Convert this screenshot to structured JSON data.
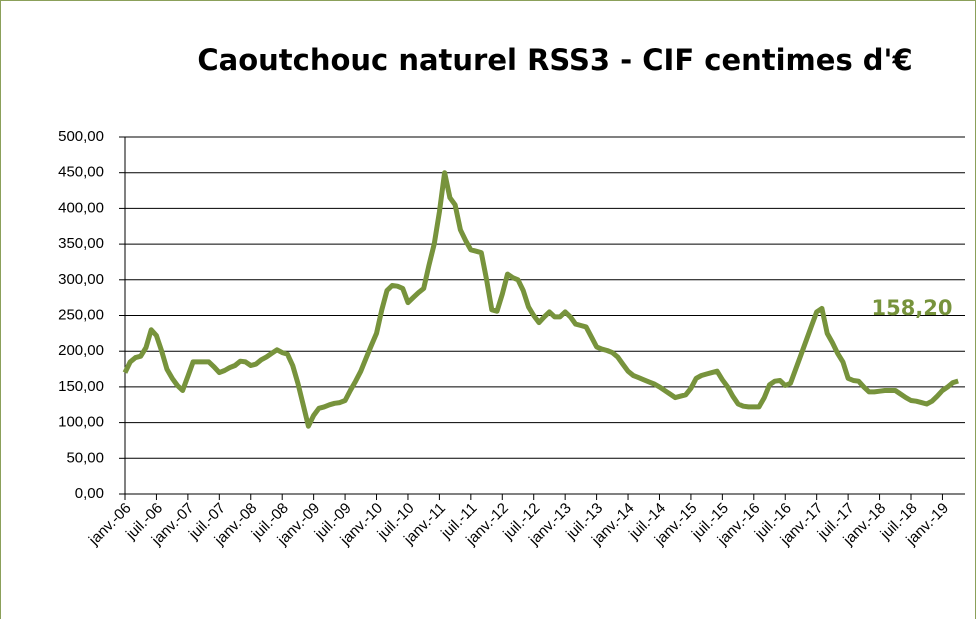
{
  "chart_data": {
    "type": "line",
    "title": "Caoutchouc naturel RSS3 - CIF centimes d'€",
    "annotation": "158,20",
    "color": "#77933c",
    "grid": true,
    "ylim": [
      0,
      500
    ],
    "yticks": [
      {
        "value": 0,
        "label": "0,00"
      },
      {
        "value": 50,
        "label": "50,00"
      },
      {
        "value": 100,
        "label": "100,00"
      },
      {
        "value": 150,
        "label": "150,00"
      },
      {
        "value": 200,
        "label": "200,00"
      },
      {
        "value": 250,
        "label": "250,00"
      },
      {
        "value": 300,
        "label": "300,00"
      },
      {
        "value": 350,
        "label": "350,00"
      },
      {
        "value": 400,
        "label": "400,00"
      },
      {
        "value": 450,
        "label": "450,00"
      },
      {
        "value": 500,
        "label": "500,00"
      }
    ],
    "categories": [
      "janv.-06",
      null,
      null,
      null,
      null,
      null,
      "juil.-06",
      null,
      null,
      null,
      null,
      null,
      "janv.-07",
      null,
      null,
      null,
      null,
      null,
      "juil.-07",
      null,
      null,
      null,
      null,
      null,
      "janv.-08",
      null,
      null,
      null,
      null,
      null,
      "juil.-08",
      null,
      null,
      null,
      null,
      null,
      "janv.-09",
      null,
      null,
      null,
      null,
      null,
      "juil.-09",
      null,
      null,
      null,
      null,
      null,
      "janv.-10",
      null,
      null,
      null,
      null,
      null,
      "juil.-10",
      null,
      null,
      null,
      null,
      null,
      "janv.-11",
      null,
      null,
      null,
      null,
      null,
      "juil.-11",
      null,
      null,
      null,
      null,
      null,
      "janv.-12",
      null,
      null,
      null,
      null,
      null,
      "juil.-12",
      null,
      null,
      null,
      null,
      null,
      "janv.-13",
      null,
      null,
      null,
      null,
      null,
      "juil.-13",
      null,
      null,
      null,
      null,
      null,
      "janv.-14",
      null,
      null,
      null,
      null,
      null,
      "juil.-14",
      null,
      null,
      null,
      null,
      null,
      "janv.-15",
      null,
      null,
      null,
      null,
      null,
      "juil.-15",
      null,
      null,
      null,
      null,
      null,
      "janv.-16",
      null,
      null,
      null,
      null,
      null,
      "juil.-16",
      null,
      null,
      null,
      null,
      null,
      "janv.-17",
      null,
      null,
      null,
      null,
      null,
      "juil.-17",
      null,
      null,
      null,
      null,
      null,
      "janv.-18",
      null,
      null,
      null,
      null,
      null,
      "juil.-18",
      null,
      null,
      null,
      null,
      null,
      "janv.-19",
      null,
      null,
      null
    ],
    "values": [
      170,
      185,
      191,
      193,
      205,
      230,
      222,
      200,
      175,
      162,
      152,
      145,
      165,
      185,
      185,
      185,
      185,
      178,
      170,
      173,
      177,
      180,
      186,
      185,
      180,
      182,
      188,
      192,
      197,
      202,
      198,
      196,
      180,
      155,
      125,
      95,
      110,
      120,
      122,
      125,
      127,
      128,
      131,
      145,
      158,
      172,
      190,
      208,
      225,
      258,
      285,
      292,
      291,
      288,
      268,
      275,
      282,
      288,
      320,
      350,
      395,
      450,
      415,
      405,
      370,
      355,
      342,
      340,
      338,
      300,
      258,
      256,
      280,
      308,
      303,
      300,
      285,
      262,
      250,
      240,
      248,
      255,
      248,
      248,
      255,
      248,
      238,
      236,
      234,
      220,
      206,
      203,
      201,
      198,
      192,
      182,
      172,
      166,
      163,
      160,
      157,
      154,
      150,
      145,
      140,
      135,
      137,
      139,
      148,
      162,
      166,
      168,
      170,
      172,
      160,
      150,
      137,
      126,
      123,
      122,
      122,
      122,
      135,
      153,
      158,
      159,
      152,
      155,
      175,
      195,
      215,
      235,
      255,
      260,
      225,
      212,
      197,
      185,
      162,
      159,
      158,
      150,
      143,
      143,
      144,
      145,
      145,
      145,
      140,
      135,
      131,
      130,
      128,
      126,
      130,
      137,
      145,
      150,
      156,
      158.2
    ]
  }
}
